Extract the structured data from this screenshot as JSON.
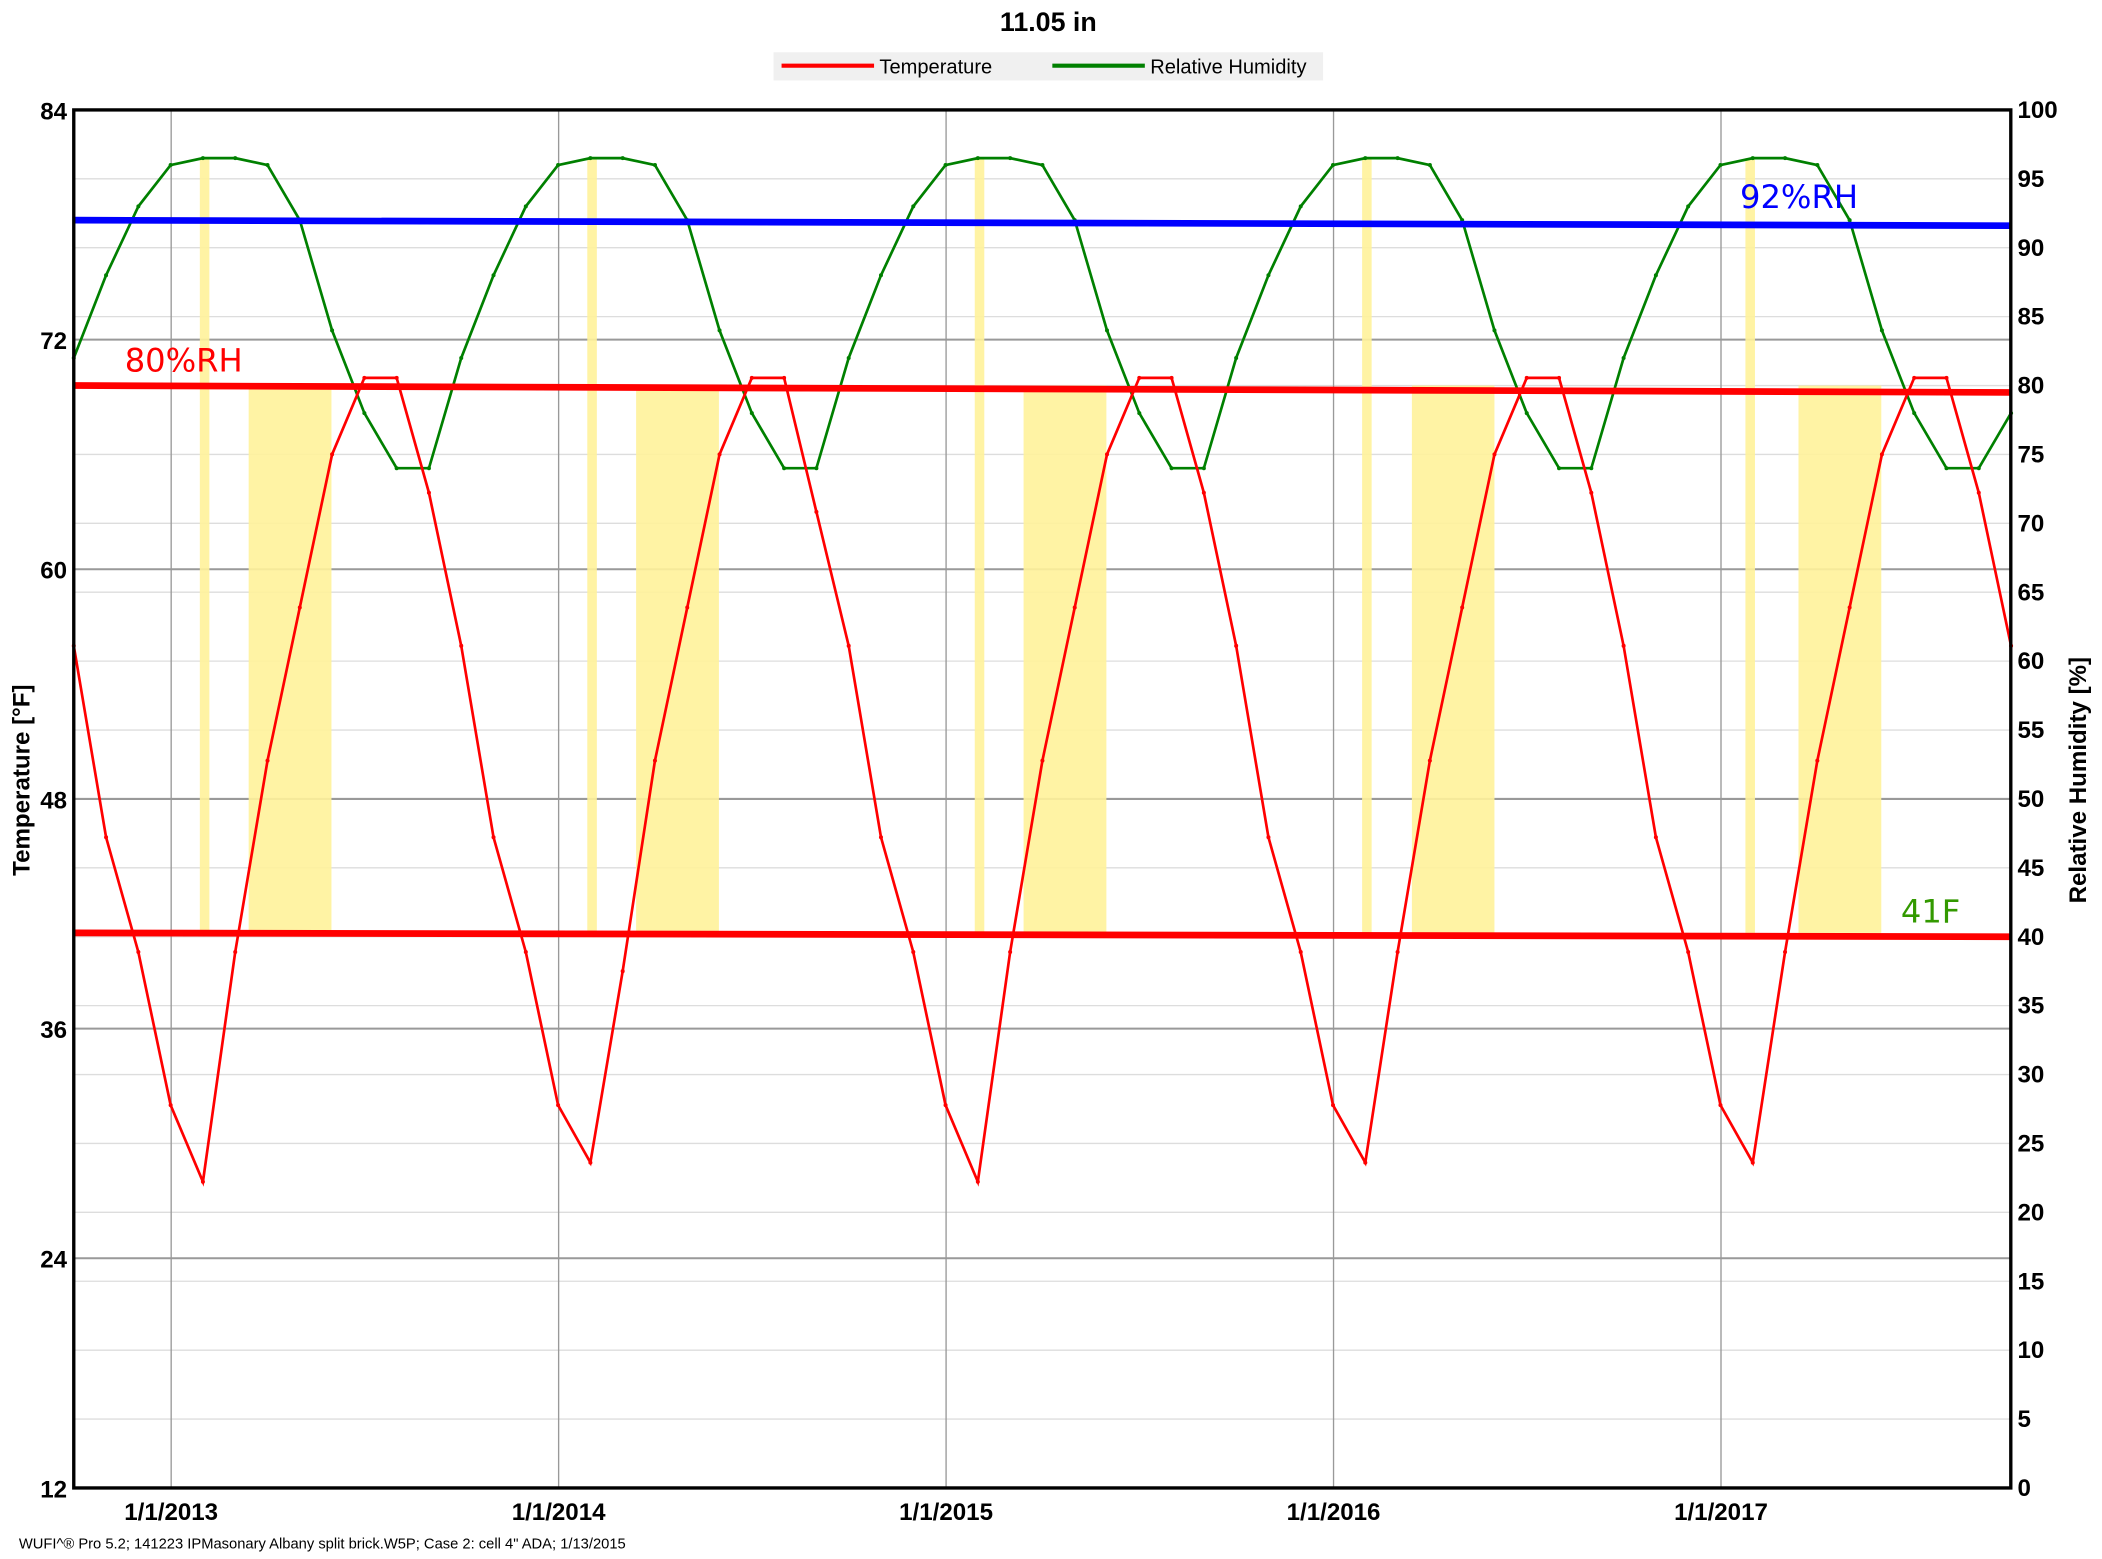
{
  "chart_data": {
    "type": "line",
    "title": "11.05 in",
    "legend": {
      "placement": "top-center",
      "entries": [
        "Temperature",
        "Relative Humidity"
      ]
    },
    "xlabel": "",
    "ylabel_left": "Temperature [°F]",
    "ylabel_right": "Relative Humidity [%]",
    "x_range": [
      "2012-10-01",
      "2017-10-01"
    ],
    "x_start": "2012-10-01",
    "x_step": "1 month",
    "x_ticks": [
      {
        "date": "2013-01-01",
        "label": "1/1/2013"
      },
      {
        "date": "2014-01-01",
        "label": "1/1/2014"
      },
      {
        "date": "2015-01-01",
        "label": "1/1/2015"
      },
      {
        "date": "2016-01-01",
        "label": "1/1/2016"
      },
      {
        "date": "2017-01-01",
        "label": "1/1/2017"
      }
    ],
    "ylim_left": [
      12,
      84
    ],
    "yticks_left": [
      "12",
      "24",
      "36",
      "48",
      "60",
      "72",
      "84"
    ],
    "ylim_right": [
      0,
      100
    ],
    "yticks_right": [
      "0",
      "5",
      "10",
      "15",
      "20",
      "25",
      "30",
      "35",
      "40",
      "45",
      "50",
      "55",
      "60",
      "65",
      "70",
      "75",
      "80",
      "85",
      "90",
      "95",
      "100"
    ],
    "grid": true,
    "series": [
      {
        "name": "Temperature",
        "axis": "left",
        "color": "#ff0000",
        "values": [
          56,
          46,
          40,
          32,
          28,
          40,
          50,
          58,
          66,
          70,
          70,
          64,
          56,
          46,
          40,
          32,
          29,
          39,
          50,
          58,
          66,
          70,
          70,
          63,
          56,
          46,
          40,
          32,
          28,
          40,
          50,
          58,
          66,
          70,
          70,
          64,
          56,
          46,
          40,
          32,
          29,
          40,
          50,
          58,
          66,
          70,
          70,
          64,
          56,
          46,
          40,
          32,
          29,
          40,
          50,
          58,
          66,
          70,
          70,
          64,
          56
        ]
      },
      {
        "name": "Relative Humidity",
        "axis": "right",
        "color": "#008000",
        "values": [
          82,
          88,
          93,
          96,
          96.5,
          96.5,
          96,
          92,
          84,
          78,
          74,
          74,
          82,
          88,
          93,
          96,
          96.5,
          96.5,
          96,
          92,
          84,
          78,
          74,
          74,
          82,
          88,
          93,
          96,
          96.5,
          96.5,
          96,
          92,
          84,
          78,
          74,
          74,
          82,
          88,
          93,
          96,
          96.5,
          96.5,
          96,
          92,
          84,
          78,
          74,
          74,
          82,
          88,
          93,
          96,
          96.5,
          96.5,
          96,
          92,
          84,
          78,
          74,
          74,
          78
        ]
      }
    ],
    "reference_lines": [
      {
        "label": "80%RH",
        "axis": "right",
        "value": [
          80,
          79.5
        ],
        "color": "#ff0000",
        "label_color": "#ff0000"
      },
      {
        "label": "92%RH",
        "axis": "right",
        "value": [
          92,
          91.6
        ],
        "color": "#0000ff",
        "label_color": "#0000ff"
      },
      {
        "label": "41F",
        "axis": "left",
        "value": [
          41,
          40.8
        ],
        "color": "#ff0000",
        "label_color": "#339900"
      }
    ],
    "highlight_bands": [
      {
        "from": "2013-01-28",
        "to": "2013-02-06",
        "rh_top": 96.5
      },
      {
        "from": "2013-03-15",
        "to": "2013-06-01",
        "rh_top": 80
      },
      {
        "from": "2014-01-28",
        "to": "2014-02-06",
        "rh_top": 96.5
      },
      {
        "from": "2014-03-15",
        "to": "2014-06-01",
        "rh_top": 80
      },
      {
        "from": "2015-01-28",
        "to": "2015-02-06",
        "rh_top": 96.5
      },
      {
        "from": "2015-03-15",
        "to": "2015-06-01",
        "rh_top": 80
      },
      {
        "from": "2016-01-28",
        "to": "2016-02-06",
        "rh_top": 96.5
      },
      {
        "from": "2016-03-15",
        "to": "2016-06-01",
        "rh_top": 80
      },
      {
        "from": "2017-01-24",
        "to": "2017-02-02",
        "rh_top": 96.5
      },
      {
        "from": "2017-03-15",
        "to": "2017-06-01",
        "rh_top": 80
      }
    ],
    "band_color": "#fff29a",
    "footer": "WUFI^® Pro 5.2; 141223 IPMasonary Albany split brick.W5P; Case 2: cell 4\" ADA; 1/13/2015"
  }
}
